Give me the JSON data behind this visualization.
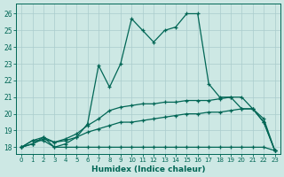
{
  "xlabel": "Humidex (Indice chaleur)",
  "bg_color": "#cde8e4",
  "line_color": "#006655",
  "grid_color": "#aacccc",
  "xlim": [
    -0.5,
    23.5
  ],
  "ylim": [
    17.6,
    26.6
  ],
  "yticks": [
    18,
    19,
    20,
    21,
    22,
    23,
    24,
    25,
    26
  ],
  "xticks": [
    0,
    1,
    2,
    3,
    4,
    5,
    6,
    7,
    8,
    9,
    10,
    11,
    12,
    13,
    14,
    15,
    16,
    17,
    18,
    19,
    20,
    21,
    22,
    23
  ],
  "lines": [
    {
      "x": [
        0,
        1,
        2,
        3,
        4,
        5,
        6,
        7,
        8,
        9,
        10,
        11,
        12,
        13,
        14,
        15,
        16,
        17,
        18,
        19,
        20,
        21,
        22,
        23
      ],
      "y": [
        18.0,
        18.4,
        18.4,
        18.0,
        18.0,
        18.0,
        18.0,
        18.0,
        18.0,
        18.0,
        18.0,
        18.0,
        18.0,
        18.0,
        18.0,
        18.0,
        18.0,
        18.0,
        18.0,
        18.0,
        18.0,
        18.0,
        18.0,
        17.8
      ]
    },
    {
      "x": [
        0,
        1,
        2,
        3,
        4,
        5,
        6,
        7,
        8,
        9,
        10,
        11,
        12,
        13,
        14,
        15,
        16,
        17,
        18,
        19,
        20,
        21,
        22,
        23
      ],
      "y": [
        18.0,
        18.2,
        18.5,
        18.3,
        18.4,
        18.6,
        18.9,
        19.1,
        19.3,
        19.5,
        19.5,
        19.6,
        19.7,
        19.8,
        19.9,
        20.0,
        20.0,
        20.1,
        20.1,
        20.2,
        20.3,
        20.3,
        19.7,
        17.8
      ]
    },
    {
      "x": [
        0,
        1,
        2,
        3,
        4,
        5,
        6,
        7,
        8,
        9,
        10,
        11,
        12,
        13,
        14,
        15,
        16,
        17,
        18,
        19,
        20,
        21,
        22,
        23
      ],
      "y": [
        18.0,
        18.2,
        18.6,
        18.3,
        18.5,
        18.8,
        19.3,
        19.7,
        20.2,
        20.4,
        20.5,
        20.6,
        20.6,
        20.7,
        20.7,
        20.8,
        20.8,
        20.8,
        20.9,
        21.0,
        21.0,
        20.3,
        19.5,
        17.8
      ]
    },
    {
      "x": [
        0,
        1,
        2,
        3,
        4,
        5,
        6,
        7,
        8,
        9,
        10,
        11,
        12,
        13,
        14,
        15,
        16,
        17,
        18,
        19,
        20,
        21,
        22,
        23
      ],
      "y": [
        18.0,
        18.4,
        18.6,
        18.0,
        18.2,
        18.6,
        19.4,
        22.9,
        21.6,
        23.0,
        25.7,
        25.0,
        24.3,
        25.0,
        25.2,
        26.0,
        26.0,
        21.8,
        21.0,
        21.0,
        20.3,
        20.3,
        19.5,
        17.8
      ]
    }
  ]
}
